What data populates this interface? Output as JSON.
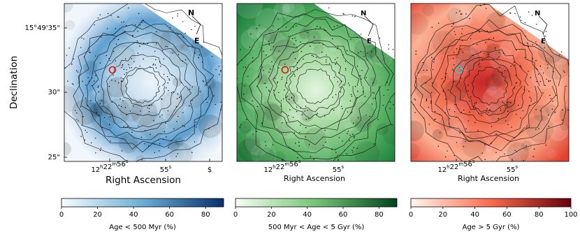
{
  "y_axis_label": "Declination",
  "panels": [
    {
      "x_axis_label": "Right Ascension",
      "x_ticks": [
        "12h22m56s",
        "55s",
        "$"
      ],
      "y_ticks": [
        "15°49'35\"",
        "30\"",
        "25\""
      ],
      "compass": {
        "north": "N",
        "east": "E"
      }
    },
    {
      "x_axis_label": "Right Ascension",
      "x_ticks": [
        "12h22m56s",
        "55s"
      ],
      "compass": {
        "north": "N",
        "east": "E"
      }
    },
    {
      "x_axis_label": "Right Ascension",
      "x_ticks": [
        "12h22m56s",
        "55s"
      ],
      "compass": {
        "north": "N",
        "east": "E"
      }
    }
  ],
  "colorbars": [
    {
      "label": "Age < 500 Myr (%)",
      "lim": [
        0,
        90
      ],
      "ticks": [
        0,
        20,
        40,
        60,
        80
      ],
      "colors": [
        "#f7fbff",
        "#6baed6",
        "#08306b"
      ]
    },
    {
      "label": "500 Myr < Age < 5 Gyr (%)",
      "lim": [
        0,
        90
      ],
      "ticks": [
        0,
        20,
        40,
        60,
        80
      ],
      "colors": [
        "#f7fcf5",
        "#74c476",
        "#00441b"
      ]
    },
    {
      "label": "Age > 5 Gyr (%)",
      "lim": [
        0,
        100
      ],
      "ticks": [
        0,
        20,
        40,
        60,
        80,
        100
      ],
      "colors": [
        "#fff5f0",
        "#fb6a4a",
        "#67000d"
      ]
    }
  ]
}
